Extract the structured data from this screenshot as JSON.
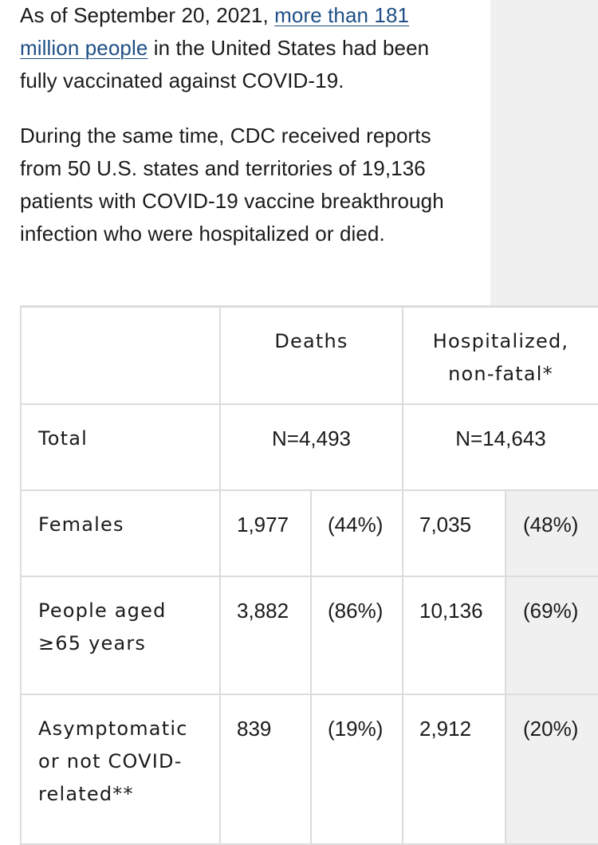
{
  "intro": {
    "text_before_link": "As of September 20, 2021, ",
    "link_text": "more than 181 million people",
    "text_after_link": " in the United States had been fully vaccinated against COVID-19."
  },
  "second_paragraph": "During the same time, CDC received reports from 50 U.S. states and territories of 19,136 patients with COVID-19 vaccine breakthrough infection who were hospitalized or died.",
  "table": {
    "headers": {
      "empty": "",
      "deaths": "Deaths",
      "hosp_line1": "Hospitalized,",
      "hosp_line2": "non-fatal*"
    },
    "rows": {
      "total": {
        "label": "Total",
        "deaths": "N=4,493",
        "hospitalized": "N=14,643"
      },
      "females": {
        "label": "Females",
        "deaths_count": "1,977",
        "deaths_pct": "(44%)",
        "hosp_count": "7,035",
        "hosp_pct": "(48%)"
      },
      "aged65": {
        "label_line1": "People aged",
        "label_line2": "≥65 years",
        "deaths_count": "3,882",
        "deaths_pct": "(86%)",
        "hosp_count": "10,136",
        "hosp_pct": "(69%)"
      },
      "asymptomatic": {
        "label_line1": "Asymptomatic",
        "label_line2": "or not COVID-",
        "label_line3": "related**",
        "deaths_count": "839",
        "deaths_pct": "(19%)",
        "hosp_count": "2,912",
        "hosp_pct": "(20%)"
      }
    }
  },
  "colors": {
    "link": "#1f4f86",
    "text": "#1b1b1b",
    "border": "#dcdcdc",
    "shade": "#f0f0f0"
  }
}
